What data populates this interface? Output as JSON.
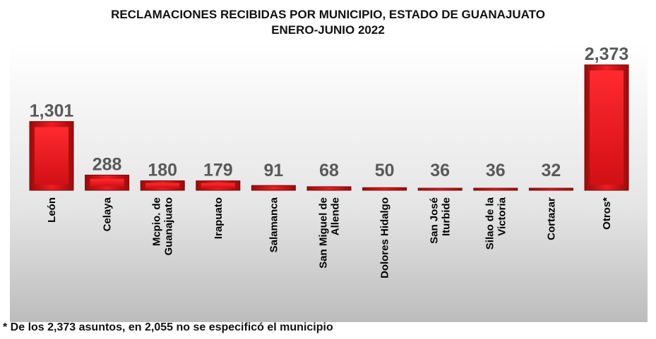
{
  "chart_data": {
    "type": "bar",
    "title": "RECLAMACIONES RECIBIDAS POR MUNICIPIO, ESTADO DE GUANAJUATO",
    "subtitle": "ENERO-JUNIO 2022",
    "categories": [
      "León",
      "Celaya",
      "Mcpio. de\nGuanajuato",
      "Irapuato",
      "Salamanca",
      "San Miguel de\nAllende",
      "Dolores Hidalgo",
      "San José\nIturbide",
      "Silao de la\nVictoria",
      "Cortazar",
      "Otros*"
    ],
    "values": [
      1301,
      288,
      180,
      179,
      91,
      68,
      50,
      36,
      36,
      32,
      2373
    ],
    "value_labels": [
      "1,301",
      "288",
      "180",
      "179",
      "91",
      "68",
      "50",
      "36",
      "36",
      "32",
      "2,373"
    ],
    "ylim": [
      0,
      2373
    ],
    "grid": false,
    "legend": "none",
    "colors": {
      "bar": "#e8141b",
      "bar_dark": "#8e0a0a",
      "value_label": "#595959",
      "plot_bg_top": "#ffffff",
      "plot_bg_bottom": "#bdbdbd"
    }
  },
  "footnote": "* De los 2,373 asuntos, en 2,055 no se especificó el municipio"
}
